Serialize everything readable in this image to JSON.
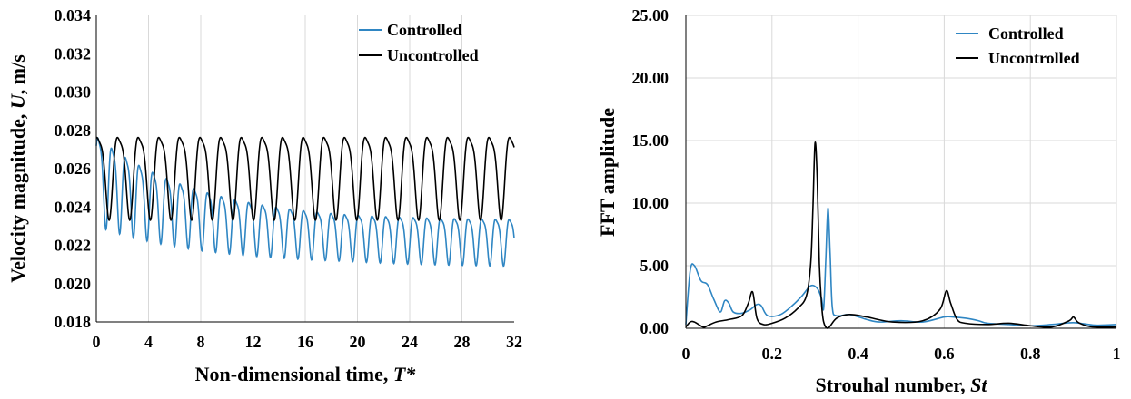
{
  "colors": {
    "controlled": "#2f86c3",
    "uncontrolled": "#000000",
    "grid": "#d9d9d9"
  },
  "chart_data": [
    {
      "type": "line",
      "xlabel_main": "Non-dimensional time, ",
      "xlabel_italic": "T*",
      "ylabel_main": "Velocity magnitude, ",
      "ylabel_italic": "U",
      "ylabel_unit": ", m/s",
      "xlim": [
        0,
        32
      ],
      "ylim": [
        0.018,
        0.034
      ],
      "xticks": [
        "0",
        "4",
        "8",
        "12",
        "16",
        "20",
        "24",
        "28",
        "32"
      ],
      "yticks": [
        "0.018",
        "0.020",
        "0.022",
        "0.024",
        "0.026",
        "0.028",
        "0.030",
        "0.032",
        "0.034"
      ],
      "grid": "vertical",
      "legend_position": "top-right",
      "series": [
        {
          "name": "Controlled",
          "color": "#2f86c3",
          "signal": {
            "period": 1.05,
            "mean_start": 0.0258,
            "mean_end": 0.0223,
            "amp_start": 0.0026,
            "amp_end": 0.00135,
            "phase": 0.4
          },
          "peaks": [
            [
              0.5,
              0.0284
            ],
            [
              2.1,
              0.0282
            ],
            [
              3.7,
              0.0279
            ],
            [
              5.4,
              0.0272
            ],
            [
              6.9,
              0.0259
            ],
            [
              8.5,
              0.025
            ],
            [
              10.1,
              0.0245
            ],
            [
              12.8,
              0.0244
            ],
            [
              16.5,
              0.024
            ],
            [
              20.0,
              0.0238
            ],
            [
              24.5,
              0.0237
            ],
            [
              30.5,
              0.0236
            ]
          ],
          "troughs": [
            [
              1.3,
              0.0234
            ],
            [
              3.0,
              0.0231
            ],
            [
              4.6,
              0.0233
            ],
            [
              7.5,
              0.0234
            ],
            [
              9.5,
              0.0224
            ],
            [
              11.6,
              0.022
            ],
            [
              15.0,
              0.0215
            ],
            [
              20.0,
              0.0212
            ],
            [
              25.5,
              0.021
            ],
            [
              29.0,
              0.0206
            ],
            [
              31.7,
              0.0208
            ]
          ]
        },
        {
          "name": "Uncontrolled",
          "color": "#000000",
          "signal": {
            "period": 1.58,
            "mean": 0.0259,
            "amp": 0.0024,
            "phase": 0.9
          },
          "peaks": [
            [
              0.8,
              0.0285
            ],
            [
              2.5,
              0.0286
            ],
            [
              4.1,
              0.0283
            ],
            [
              9.0,
              0.0284
            ],
            [
              15.3,
              0.0283
            ],
            [
              20.1,
              0.0283
            ],
            [
              25.0,
              0.0283
            ],
            [
              31.5,
              0.0282
            ]
          ],
          "troughs": [
            [
              0.1,
              0.0232
            ],
            [
              1.6,
              0.024
            ],
            [
              6.5,
              0.0234
            ],
            [
              13.5,
              0.0234
            ],
            [
              19.0,
              0.0234
            ],
            [
              26.5,
              0.0233
            ],
            [
              31.0,
              0.0235
            ]
          ]
        }
      ]
    },
    {
      "type": "line",
      "xlabel_main": "Strouhal number, ",
      "xlabel_italic": "St",
      "ylabel": "FFT amplitude",
      "xlim": [
        0,
        1
      ],
      "ylim": [
        0,
        25
      ],
      "xticks": [
        "0",
        "0.2",
        "0.4",
        "0.6",
        "0.8",
        "1"
      ],
      "yticks": [
        "0.00",
        "5.00",
        "10.00",
        "15.00",
        "20.00",
        "25.00"
      ],
      "grid": "both",
      "legend_position": "top-right",
      "series": [
        {
          "name": "Controlled",
          "color": "#2f86c3",
          "x": [
            0,
            0.01,
            0.02,
            0.035,
            0.05,
            0.065,
            0.08,
            0.09,
            0.1,
            0.11,
            0.13,
            0.15,
            0.165,
            0.175,
            0.19,
            0.22,
            0.25,
            0.27,
            0.29,
            0.305,
            0.315,
            0.32,
            0.325,
            0.33,
            0.335,
            0.34,
            0.35,
            0.38,
            0.42,
            0.45,
            0.5,
            0.55,
            0.6,
            0.62,
            0.65,
            0.68,
            0.7,
            0.75,
            0.8,
            0.85,
            0.9,
            0.95,
            1.0
          ],
          "y": [
            0.3,
            4.6,
            5.0,
            3.8,
            3.5,
            2.3,
            1.3,
            2.2,
            2.0,
            1.3,
            1.2,
            1.5,
            1.9,
            1.8,
            1.0,
            1.1,
            1.9,
            2.6,
            3.4,
            3.2,
            2.4,
            1.6,
            5.5,
            9.6,
            6.0,
            1.7,
            1.0,
            1.1,
            0.7,
            0.5,
            0.6,
            0.5,
            0.9,
            0.9,
            0.8,
            0.6,
            0.4,
            0.3,
            0.2,
            0.3,
            0.45,
            0.25,
            0.3
          ]
        },
        {
          "name": "Uncontrolled",
          "color": "#000000",
          "x": [
            0,
            0.01,
            0.02,
            0.04,
            0.05,
            0.07,
            0.1,
            0.13,
            0.145,
            0.155,
            0.165,
            0.18,
            0.2,
            0.23,
            0.26,
            0.28,
            0.29,
            0.295,
            0.3,
            0.305,
            0.31,
            0.315,
            0.32,
            0.33,
            0.35,
            0.38,
            0.42,
            0.48,
            0.55,
            0.59,
            0.605,
            0.615,
            0.63,
            0.65,
            0.7,
            0.75,
            0.8,
            0.85,
            0.89,
            0.9,
            0.91,
            0.93,
            0.95,
            1.0
          ],
          "y": [
            0.1,
            0.5,
            0.5,
            0.1,
            0.2,
            0.5,
            0.7,
            1.0,
            2.0,
            2.9,
            0.8,
            0.3,
            0.4,
            0.8,
            1.6,
            2.6,
            5.2,
            9.5,
            14.8,
            12.0,
            5.2,
            2.0,
            0.5,
            0.0,
            0.8,
            1.1,
            0.9,
            0.5,
            0.6,
            1.5,
            3.0,
            2.0,
            0.7,
            0.4,
            0.3,
            0.4,
            0.2,
            0.1,
            0.6,
            0.9,
            0.5,
            0.2,
            0.1,
            0.1
          ]
        }
      ]
    }
  ]
}
